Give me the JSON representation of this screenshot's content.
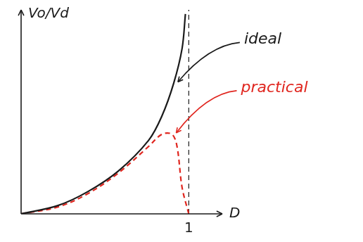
{
  "chart_data": {
    "type": "line",
    "x_label": "D",
    "y_label": "Vo/Vd",
    "xlim": [
      0,
      1.2
    ],
    "xticks": [
      1
    ],
    "ylim": [
      0,
      10
    ],
    "yticks": [],
    "tick_labels": "x",
    "grid": false,
    "series": [
      {
        "name": "ideal",
        "color": "#1a1a1a",
        "line_style": "solid",
        "x": [
          0,
          0.22,
          0.4,
          0.58,
          0.76,
          0.84,
          0.91,
          0.96,
          0.98
        ],
        "values": [
          0,
          0.41,
          1.1,
          2.1,
          3.6,
          4.8,
          6.4,
          8.1,
          9.8
        ]
      },
      {
        "name": "practical",
        "color": "#e0261f",
        "line_style": "dashed",
        "x": [
          0,
          0.22,
          0.4,
          0.58,
          0.76,
          0.84,
          0.9,
          0.93,
          0.96,
          1.0
        ],
        "values": [
          0,
          0.34,
          1.0,
          2.0,
          3.3,
          3.9,
          3.9,
          3.3,
          1.3,
          0
        ]
      },
      {
        "color": "#1a1a1a",
        "line_style": "dashed",
        "x": [
          1,
          1
        ],
        "values": [
          0,
          10
        ]
      }
    ]
  }
}
